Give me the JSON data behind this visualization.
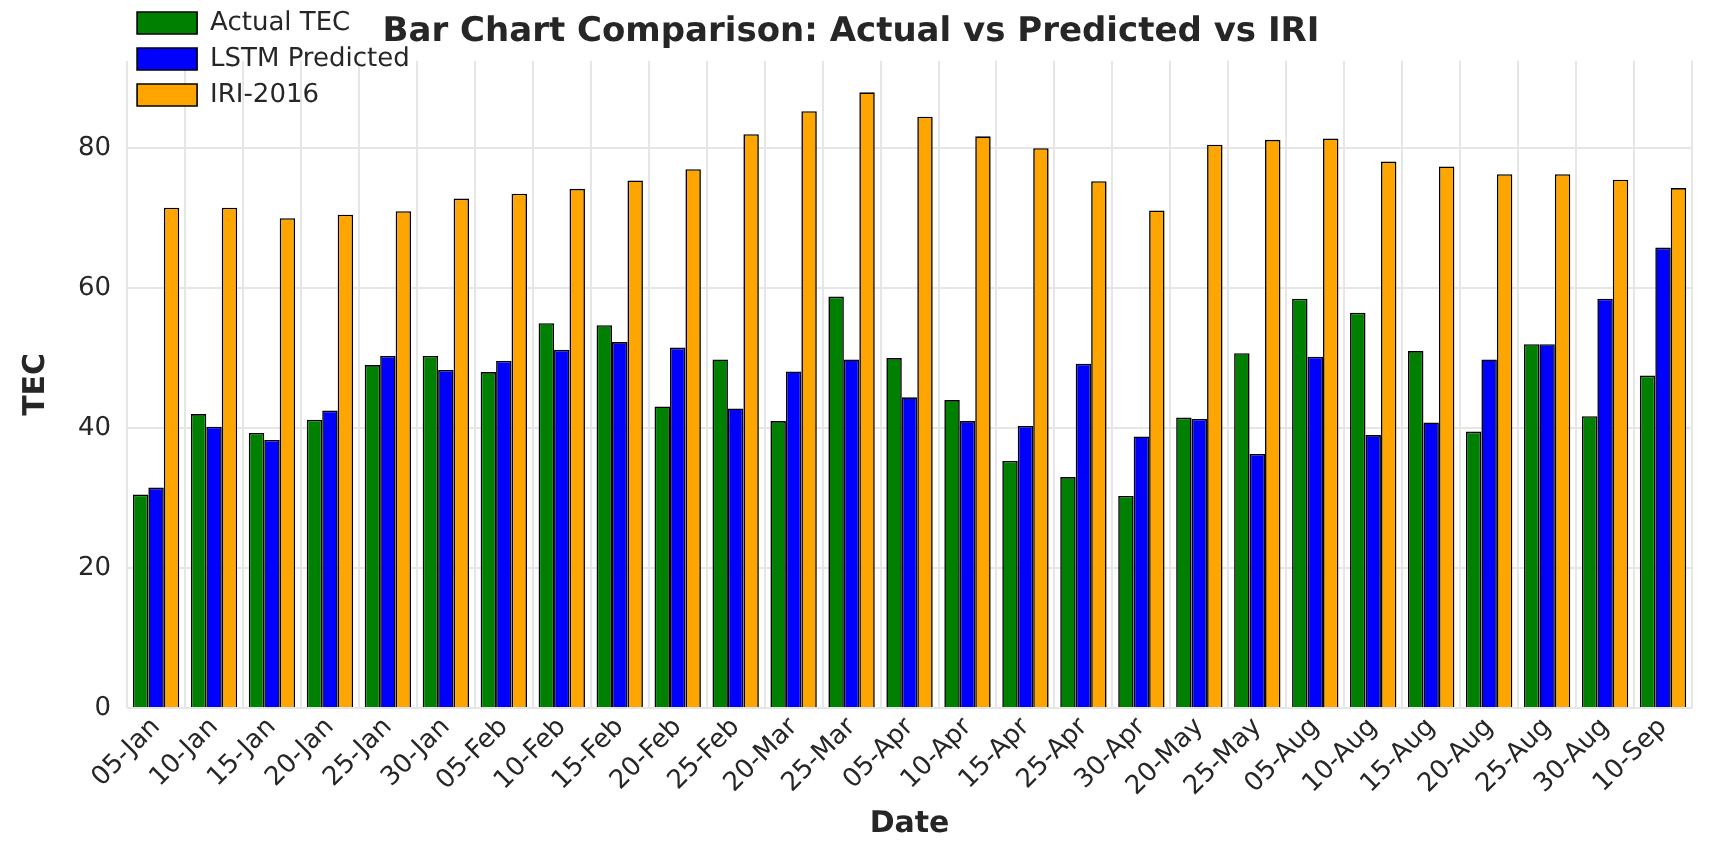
{
  "chart_data": {
    "type": "bar",
    "title": "Bar Chart Comparison: Actual vs Predicted vs IRI",
    "xlabel": "Date",
    "ylabel": "TEC",
    "categories": [
      "05-Jan",
      "10-Jan",
      "15-Jan",
      "20-Jan",
      "25-Jan",
      "30-Jan",
      "05-Feb",
      "10-Feb",
      "15-Feb",
      "20-Feb",
      "25-Feb",
      "20-Mar",
      "25-Mar",
      "05-Apr",
      "10-Apr",
      "15-Apr",
      "25-Apr",
      "30-Apr",
      "20-May",
      "25-May",
      "05-Aug",
      "10-Aug",
      "15-Aug",
      "20-Aug",
      "25-Aug",
      "30-Aug",
      "10-Sep"
    ],
    "series": [
      {
        "name": "Actual TEC",
        "color": "#008000",
        "values": [
          30.5,
          42,
          39.3,
          41.2,
          49,
          50.3,
          48,
          55,
          54.7,
          43.1,
          49.8,
          41,
          58.8,
          50,
          44,
          35.3,
          33,
          30.3,
          41.5,
          50.7,
          58.5,
          56.5,
          51,
          39.5,
          52,
          41.7,
          47.5
        ]
      },
      {
        "name": "LSTM Predicted",
        "color": "#0000ff",
        "values": [
          31.5,
          40.2,
          38.3,
          42.5,
          50.3,
          48.3,
          49.6,
          51.2,
          52.3,
          51.5,
          42.8,
          48.1,
          49.8,
          44.4,
          41,
          40.3,
          49.2,
          38.8,
          41.3,
          36.3,
          50.2,
          39,
          40.8,
          49.8,
          52,
          58.5,
          65.8
        ]
      },
      {
        "name": "IRI-2016",
        "color": "#ffa500",
        "values": [
          71.5,
          71.5,
          70,
          70.5,
          71,
          72.8,
          73.5,
          74.2,
          75.4,
          77,
          82,
          85.3,
          88,
          84.5,
          81.7,
          80,
          75.3,
          71.1,
          80.5,
          81.2,
          81.4,
          78.1,
          77.4,
          76.3,
          76.3,
          75.5,
          74.3
        ]
      }
    ],
    "ylim": [
      0,
      92.5
    ],
    "yticks": [
      0,
      20,
      40,
      60,
      80
    ],
    "grid": true,
    "legend": "top left"
  }
}
